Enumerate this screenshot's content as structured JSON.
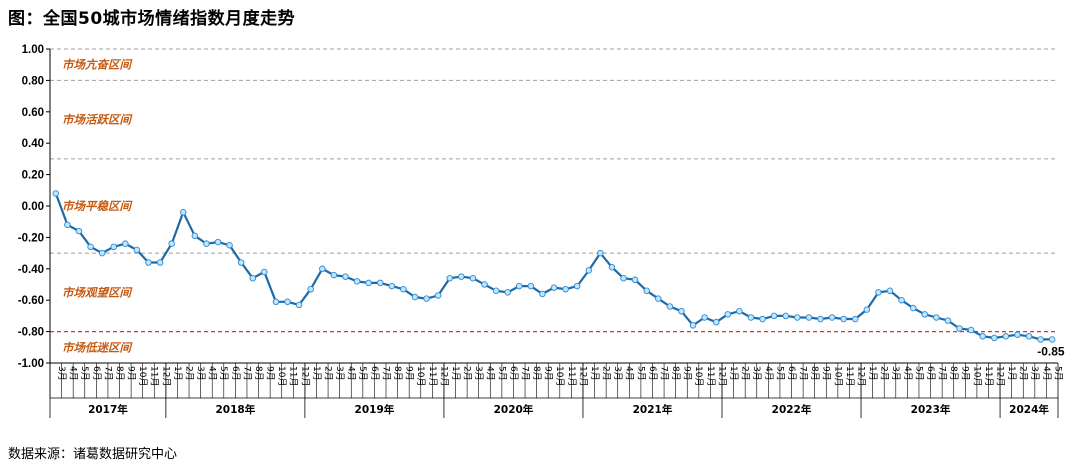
{
  "title": "图：全国50城市场情绪指数月度走势",
  "source": "数据来源：诸葛数据研究中心",
  "colors": {
    "line": "#1f6aa5",
    "marker_fill": "#bfe6ff",
    "marker_stroke": "#2e8ad1",
    "zone_label": "#c55a11",
    "threshold": "#e03030",
    "grid": "#a0a0a0"
  },
  "chart_data": {
    "type": "line",
    "title": "全国50城市场情绪指数月度走势",
    "ylim": [
      -1.0,
      1.0
    ],
    "yticks": [
      "1.00",
      "0.80",
      "0.60",
      "0.40",
      "0.20",
      "0.00",
      "-0.20",
      "-0.40",
      "-0.60",
      "-0.80",
      "-1.00"
    ],
    "ytick_values": [
      1.0,
      0.8,
      0.6,
      0.4,
      0.2,
      0.0,
      -0.2,
      -0.4,
      -0.6,
      -0.8,
      -1.0
    ],
    "grid_values": [
      1.0,
      0.8,
      0.3,
      -0.3
    ],
    "threshold": -0.8,
    "zones": [
      {
        "label": "市场亢奋区间",
        "y": 0.9
      },
      {
        "label": "市场活跃区间",
        "y": 0.55
      },
      {
        "label": "市场平稳区间",
        "y": 0.0
      },
      {
        "label": "市场观望区间",
        "y": -0.55
      },
      {
        "label": "市场低迷区间",
        "y": -0.9
      }
    ],
    "years": [
      {
        "label": "2017年",
        "months": [
          "3月",
          "4月",
          "5月",
          "6月",
          "7月",
          "8月",
          "9月",
          "10月",
          "11月",
          "12月"
        ]
      },
      {
        "label": "2018年",
        "months": [
          "1月",
          "2月",
          "3月",
          "4月",
          "5月",
          "6月",
          "7月",
          "8月",
          "9月",
          "10月",
          "11月",
          "12月"
        ]
      },
      {
        "label": "2019年",
        "months": [
          "1月",
          "2月",
          "3月",
          "4月",
          "5月",
          "6月",
          "7月",
          "8月",
          "9月",
          "10月",
          "11月",
          "12月"
        ]
      },
      {
        "label": "2020年",
        "months": [
          "1月",
          "2月",
          "3月",
          "4月",
          "5月",
          "6月",
          "7月",
          "8月",
          "9月",
          "10月",
          "11月",
          "12月"
        ]
      },
      {
        "label": "2021年",
        "months": [
          "1月",
          "2月",
          "3月",
          "4月",
          "5月",
          "6月",
          "7月",
          "8月",
          "9月",
          "10月",
          "11月",
          "12月"
        ]
      },
      {
        "label": "2022年",
        "months": [
          "1月",
          "2月",
          "3月",
          "4月",
          "5月",
          "6月",
          "7月",
          "8月",
          "9月",
          "10月",
          "11月",
          "12月"
        ]
      },
      {
        "label": "2023年",
        "months": [
          "1月",
          "2月",
          "3月",
          "4月",
          "5月",
          "6月",
          "7月",
          "8月",
          "9月",
          "10月",
          "11月",
          "12月"
        ]
      },
      {
        "label": "2024年",
        "months": [
          "1月",
          "2月",
          "3月",
          "4月",
          "5月"
        ]
      }
    ],
    "values": [
      0.08,
      -0.12,
      -0.16,
      -0.26,
      -0.3,
      -0.26,
      -0.24,
      -0.28,
      -0.36,
      -0.36,
      -0.24,
      -0.04,
      -0.19,
      -0.24,
      -0.23,
      -0.25,
      -0.36,
      -0.46,
      -0.42,
      -0.61,
      -0.61,
      -0.63,
      -0.53,
      -0.4,
      -0.44,
      -0.45,
      -0.48,
      -0.49,
      -0.49,
      -0.51,
      -0.53,
      -0.58,
      -0.59,
      -0.57,
      -0.46,
      -0.45,
      -0.46,
      -0.5,
      -0.54,
      -0.55,
      -0.51,
      -0.51,
      -0.56,
      -0.52,
      -0.53,
      -0.51,
      -0.41,
      -0.3,
      -0.39,
      -0.46,
      -0.47,
      -0.54,
      -0.59,
      -0.64,
      -0.67,
      -0.76,
      -0.71,
      -0.74,
      -0.69,
      -0.67,
      -0.71,
      -0.72,
      -0.7,
      -0.7,
      -0.71,
      -0.71,
      -0.72,
      -0.71,
      -0.72,
      -0.72,
      -0.66,
      -0.55,
      -0.54,
      -0.6,
      -0.65,
      -0.69,
      -0.71,
      -0.73,
      -0.78,
      -0.79,
      -0.83,
      -0.84,
      -0.83,
      -0.82,
      -0.83,
      -0.85,
      -0.85
    ],
    "last_value_label": "-0.85"
  }
}
